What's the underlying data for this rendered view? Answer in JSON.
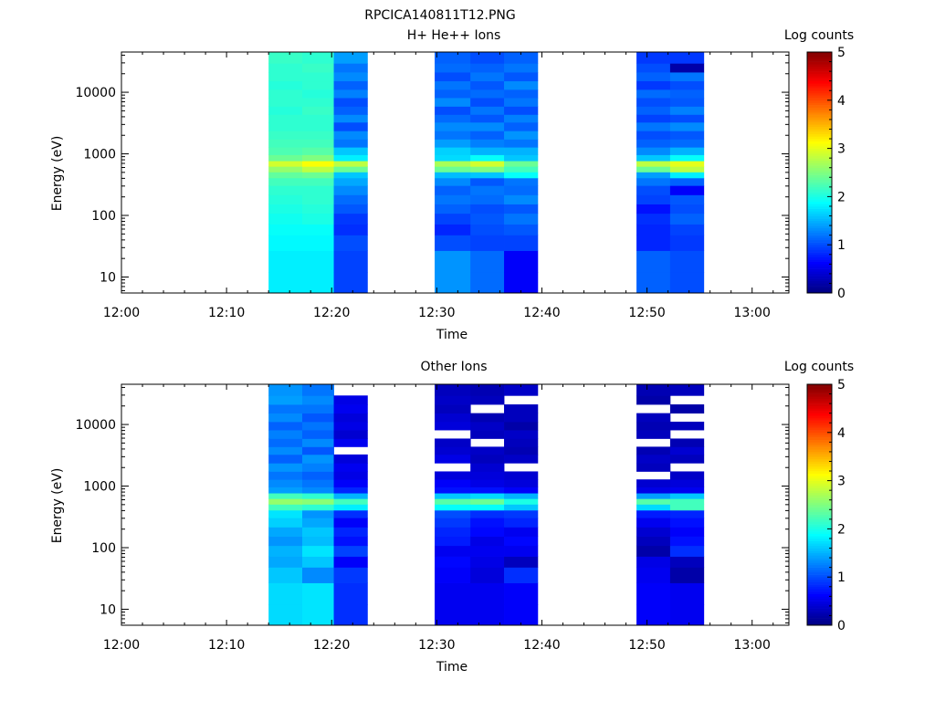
{
  "figure": {
    "title": "RPCICA140811T12.PNG"
  },
  "chart_data": [
    {
      "type": "heatmap",
      "title": "H+ He++ Ions",
      "xlabel": "Time",
      "ylabel": "Energy (eV)",
      "y_scale": "log",
      "ylim": [
        5.5,
        45000
      ],
      "x_tick_labels": [
        "12:00",
        "12:10",
        "12:20",
        "12:30",
        "12:40",
        "12:50",
        "13:00"
      ],
      "x_tick_minutes": [
        0,
        10,
        20,
        30,
        40,
        50,
        60
      ],
      "xlim_minutes": [
        0,
        63.5
      ],
      "y_tick_labels": [
        "10",
        "100",
        "1000",
        "10000"
      ],
      "y_tick_values": [
        10,
        100,
        1000,
        10000
      ],
      "colorbar": {
        "label": "Log counts",
        "range": [
          0,
          5
        ],
        "tick_labels": [
          "0",
          "1",
          "2",
          "3",
          "4",
          "5"
        ],
        "colormap": "jet"
      },
      "energy_bins_eV": [
        8,
        18,
        40,
        58,
        90,
        130,
        180,
        260,
        360,
        460,
        560,
        700,
        850,
        1100,
        1500,
        2000,
        2800,
        3800,
        5000,
        7000,
        9500,
        13000,
        18000,
        25000,
        35000
      ],
      "columns": [
        {
          "start_min": 14.0,
          "end_min": 17.2,
          "log_counts": [
            1.8,
            1.8,
            1.85,
            1.9,
            1.95,
            2.0,
            2.05,
            2.1,
            2.2,
            2.35,
            2.6,
            2.9,
            2.4,
            2.25,
            2.2,
            2.15,
            2.1,
            2.1,
            2.05,
            2.1,
            2.1,
            2.05,
            2.1,
            2.1,
            2.15
          ]
        },
        {
          "start_min": 17.2,
          "end_min": 20.2,
          "log_counts": [
            1.8,
            1.8,
            1.85,
            1.9,
            2.0,
            2.05,
            2.1,
            2.1,
            2.2,
            2.4,
            2.8,
            3.1,
            2.5,
            2.3,
            2.2,
            2.15,
            2.1,
            2.1,
            2.15,
            2.1,
            2.05,
            2.1,
            2.1,
            2.15,
            2.1
          ]
        },
        {
          "start_min": 20.2,
          "end_min": 23.4,
          "log_counts": [
            0.95,
            0.95,
            1.0,
            0.85,
            0.9,
            1.05,
            1.15,
            1.3,
            1.45,
            1.6,
            2.4,
            2.8,
            1.8,
            1.6,
            1.2,
            1.3,
            1.0,
            1.3,
            1.1,
            1.0,
            1.25,
            1.1,
            1.3,
            1.2,
            1.4
          ]
        },
        {
          "start_min": 29.8,
          "end_min": 33.2,
          "log_counts": [
            1.35,
            1.35,
            1.0,
            0.8,
            0.95,
            1.1,
            1.2,
            1.1,
            1.3,
            1.55,
            2.4,
            2.7,
            1.7,
            1.65,
            1.4,
            1.2,
            1.3,
            1.15,
            1.0,
            1.3,
            1.1,
            1.2,
            1.0,
            1.15,
            1.1
          ]
        },
        {
          "start_min": 33.2,
          "end_min": 36.4,
          "log_counts": [
            1.15,
            1.15,
            0.95,
            1.0,
            1.05,
            1.0,
            1.15,
            1.2,
            1.05,
            1.6,
            2.5,
            2.9,
            1.9,
            1.5,
            1.25,
            1.1,
            1.3,
            1.05,
            1.2,
            1.0,
            1.15,
            1.05,
            1.2,
            1.1,
            1.0
          ]
        },
        {
          "start_min": 36.4,
          "end_min": 39.6,
          "log_counts": [
            0.6,
            0.6,
            0.95,
            1.05,
            1.2,
            1.05,
            1.3,
            1.15,
            1.2,
            1.9,
            2.2,
            2.4,
            1.6,
            1.5,
            1.2,
            1.35,
            1.1,
            1.25,
            1.0,
            1.2,
            1.1,
            1.3,
            1.05,
            1.2,
            1.1
          ]
        },
        {
          "start_min": 49.0,
          "end_min": 52.2,
          "log_counts": [
            1.1,
            1.1,
            0.8,
            0.8,
            0.85,
            0.7,
            0.95,
            1.0,
            1.2,
            1.4,
            2.4,
            2.8,
            1.6,
            1.3,
            1.1,
            1.0,
            1.2,
            0.95,
            1.1,
            1.0,
            1.15,
            0.9,
            1.1,
            1.0,
            0.9
          ]
        },
        {
          "start_min": 52.2,
          "end_min": 55.4,
          "log_counts": [
            1.0,
            1.0,
            0.9,
            0.95,
            1.1,
            1.0,
            1.05,
            0.6,
            1.1,
            1.8,
            2.8,
            3.0,
            1.9,
            1.5,
            1.15,
            1.05,
            1.3,
            1.0,
            1.25,
            1.05,
            1.1,
            1.0,
            1.2,
            0.2,
            0.9
          ]
        }
      ]
    },
    {
      "type": "heatmap",
      "title": "Other Ions",
      "xlabel": "Time",
      "ylabel": "Energy (eV)",
      "y_scale": "log",
      "ylim": [
        5.5,
        45000
      ],
      "x_tick_labels": [
        "12:00",
        "12:10",
        "12:20",
        "12:30",
        "12:40",
        "12:50",
        "13:00"
      ],
      "x_tick_minutes": [
        0,
        10,
        20,
        30,
        40,
        50,
        60
      ],
      "xlim_minutes": [
        0,
        63.5
      ],
      "y_tick_labels": [
        "10",
        "100",
        "1000",
        "10000"
      ],
      "y_tick_values": [
        10,
        100,
        1000,
        10000
      ],
      "colorbar": {
        "label": "Log counts",
        "range": [
          0,
          5
        ],
        "tick_labels": [
          "0",
          "1",
          "2",
          "3",
          "4",
          "5"
        ],
        "colormap": "jet"
      },
      "energy_bins_eV": [
        8,
        18,
        40,
        58,
        90,
        130,
        180,
        260,
        360,
        460,
        560,
        700,
        850,
        1100,
        1500,
        2000,
        2800,
        3800,
        5000,
        7000,
        9500,
        13000,
        18000,
        25000,
        35000
      ],
      "columns": [
        {
          "start_min": 14.0,
          "end_min": 17.2,
          "log_counts": [
            1.7,
            1.7,
            1.6,
            1.45,
            1.5,
            1.35,
            1.45,
            1.65,
            1.75,
            2.2,
            2.6,
            2.2,
            1.4,
            1.3,
            1.2,
            1.35,
            1.1,
            1.3,
            1.15,
            1.25,
            1.1,
            1.3,
            1.2,
            1.4,
            1.35
          ]
        },
        {
          "start_min": 17.2,
          "end_min": 20.2,
          "log_counts": [
            1.75,
            1.75,
            1.3,
            1.6,
            1.75,
            1.55,
            1.6,
            1.45,
            1.35,
            2.1,
            2.55,
            2.1,
            1.3,
            1.2,
            1.1,
            1.25,
            1.35,
            1.05,
            1.3,
            1.1,
            1.2,
            1.05,
            1.2,
            1.3,
            1.2
          ]
        },
        {
          "start_min": 20.2,
          "end_min": 23.4,
          "log_counts": [
            0.85,
            0.85,
            0.9,
            0.6,
            0.95,
            0.7,
            0.8,
            0.6,
            0.85,
            1.8,
            2.2,
            1.5,
            0.8,
            0.6,
            0.5,
            0.55,
            0.45,
            -1,
            0.55,
            0.4,
            0.5,
            0.45,
            0.55,
            0.5,
            -1
          ]
        },
        {
          "start_min": 29.8,
          "end_min": 33.2,
          "log_counts": [
            0.55,
            0.55,
            0.6,
            0.65,
            0.55,
            0.75,
            0.8,
            0.9,
            1.0,
            1.9,
            2.3,
            1.6,
            0.7,
            0.6,
            0.45,
            -1,
            0.5,
            0.4,
            0.35,
            -1,
            0.45,
            0.4,
            0.3,
            0.35,
            0.3
          ]
        },
        {
          "start_min": 33.2,
          "end_min": 36.4,
          "log_counts": [
            0.55,
            0.55,
            0.45,
            0.5,
            0.55,
            0.5,
            0.65,
            0.7,
            0.85,
            1.9,
            2.4,
            1.7,
            0.7,
            0.5,
            0.45,
            0.4,
            0.3,
            0.35,
            -1,
            0.3,
            0.35,
            0.25,
            -1,
            0.3,
            0.25
          ]
        },
        {
          "start_min": 36.4,
          "end_min": 39.6,
          "log_counts": [
            0.6,
            0.6,
            0.85,
            0.3,
            0.55,
            0.65,
            0.55,
            0.8,
            0.9,
            1.6,
            2.0,
            1.5,
            0.6,
            0.45,
            0.4,
            -1,
            0.35,
            0.25,
            0.3,
            0.35,
            0.2,
            0.3,
            0.3,
            -1,
            0.35
          ]
        },
        {
          "start_min": 49.0,
          "end_min": 52.2,
          "log_counts": [
            0.6,
            0.6,
            0.55,
            0.5,
            0.2,
            0.3,
            0.4,
            0.55,
            0.75,
            1.7,
            2.3,
            1.4,
            0.5,
            0.4,
            -1,
            0.3,
            0.35,
            0.25,
            -1,
            0.3,
            0.25,
            0.3,
            -1,
            0.2,
            0.25
          ]
        },
        {
          "start_min": 52.2,
          "end_min": 55.4,
          "log_counts": [
            0.55,
            0.55,
            0.2,
            0.3,
            0.85,
            0.7,
            0.6,
            0.7,
            0.8,
            2.2,
            2.2,
            1.6,
            0.55,
            0.45,
            0.35,
            -1,
            0.3,
            0.4,
            0.25,
            -1,
            0.3,
            -1,
            0.2,
            -1,
            0.3
          ]
        }
      ]
    }
  ]
}
